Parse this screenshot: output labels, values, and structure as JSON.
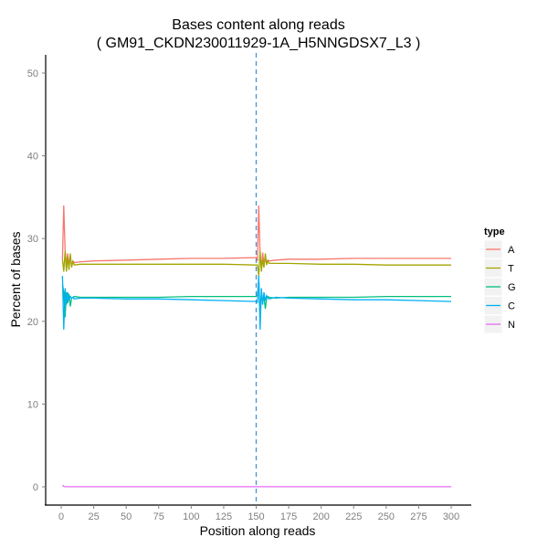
{
  "chart_data": {
    "type": "line",
    "title": "Bases content along reads",
    "subtitle": "( GM91_CKDN230011929-1A_H5NNGDSX7_L3 )",
    "xlabel": "Position along reads",
    "ylabel": "Percent of bases",
    "xlim": [
      0,
      300
    ],
    "ylim": [
      0,
      50
    ],
    "xticks": [
      0,
      25,
      50,
      75,
      100,
      125,
      150,
      175,
      200,
      225,
      250,
      275,
      300
    ],
    "yticks": [
      0,
      10,
      20,
      30,
      40,
      50
    ],
    "grid": false,
    "vline": {
      "x": 150,
      "style": "dashed",
      "color": "#4a90d0"
    },
    "legend": {
      "title": "type",
      "position": "right"
    },
    "series": [
      {
        "name": "A",
        "color": "#F8766D",
        "x": [
          1,
          2,
          3,
          4,
          5,
          6,
          7,
          8,
          9,
          10,
          15,
          25,
          50,
          75,
          100,
          125,
          150,
          151,
          152,
          153,
          154,
          155,
          156,
          157,
          158,
          159,
          160,
          165,
          175,
          200,
          225,
          250,
          275,
          300
        ],
        "values": [
          27.5,
          34,
          28.5,
          26.8,
          28.2,
          27,
          27.6,
          26.7,
          27.3,
          27.1,
          27.2,
          27.3,
          27.4,
          27.5,
          27.6,
          27.6,
          27.7,
          27.3,
          34,
          28,
          26.5,
          28.3,
          26.8,
          27.5,
          27.2,
          27.4,
          27.3,
          27.4,
          27.5,
          27.5,
          27.6,
          27.6,
          27.6,
          27.6
        ]
      },
      {
        "name": "T",
        "color": "#A3A500",
        "x": [
          1,
          2,
          3,
          4,
          5,
          6,
          7,
          8,
          9,
          10,
          15,
          25,
          50,
          75,
          100,
          125,
          150,
          151,
          152,
          153,
          154,
          155,
          156,
          157,
          158,
          159,
          160,
          165,
          175,
          200,
          225,
          250,
          275,
          300
        ],
        "values": [
          27.5,
          26.0,
          28.5,
          26.0,
          27.8,
          26.2,
          28.2,
          26.5,
          27.3,
          26.8,
          26.9,
          26.9,
          26.9,
          26.9,
          26.9,
          26.9,
          26.8,
          26.8,
          25.5,
          28.5,
          26.0,
          27.5,
          26.5,
          28.2,
          26.8,
          27.3,
          27.0,
          27.0,
          27.0,
          26.9,
          26.9,
          26.8,
          26.8,
          26.8
        ]
      },
      {
        "name": "G",
        "color": "#00BF7D",
        "x": [
          1,
          2,
          3,
          4,
          5,
          6,
          7,
          8,
          9,
          10,
          15,
          25,
          50,
          75,
          100,
          125,
          150,
          151,
          152,
          153,
          154,
          155,
          156,
          157,
          158,
          159,
          160,
          165,
          175,
          200,
          225,
          250,
          275,
          300
        ],
        "values": [
          24.5,
          23.5,
          20.5,
          23.5,
          22.2,
          23.3,
          21.8,
          22.8,
          22.9,
          23.0,
          22.9,
          22.9,
          22.9,
          22.9,
          23.0,
          23.0,
          23.0,
          23.2,
          25,
          21,
          23.5,
          22.5,
          23,
          21.5,
          22.8,
          23.0,
          22.9,
          22.8,
          22.9,
          22.9,
          22.9,
          23.0,
          23.0,
          23.0
        ]
      },
      {
        "name": "C",
        "color": "#00B0F6",
        "x": [
          1,
          2,
          3,
          4,
          5,
          6,
          7,
          8,
          9,
          10,
          15,
          25,
          50,
          75,
          100,
          125,
          150,
          151,
          152,
          153,
          154,
          155,
          156,
          157,
          158,
          159,
          160,
          165,
          175,
          200,
          225,
          250,
          275,
          300
        ],
        "values": [
          25.5,
          19,
          24,
          22,
          23.5,
          22.5,
          23,
          22.8,
          22.9,
          22.7,
          22.8,
          22.8,
          22.7,
          22.7,
          22.6,
          22.5,
          22.4,
          22.3,
          25.5,
          19,
          24,
          22,
          23.5,
          22.5,
          23.1,
          22.8,
          22.7,
          22.9,
          22.8,
          22.7,
          22.6,
          22.6,
          22.5,
          22.4
        ]
      },
      {
        "name": "N",
        "color": "#E76BF3",
        "x": [
          1,
          2,
          3,
          5,
          150,
          151,
          152,
          153,
          300
        ],
        "values": [
          0.2,
          0.05,
          0.01,
          0.01,
          0.01,
          0.01,
          0.01,
          0.01,
          0.01
        ]
      }
    ]
  }
}
